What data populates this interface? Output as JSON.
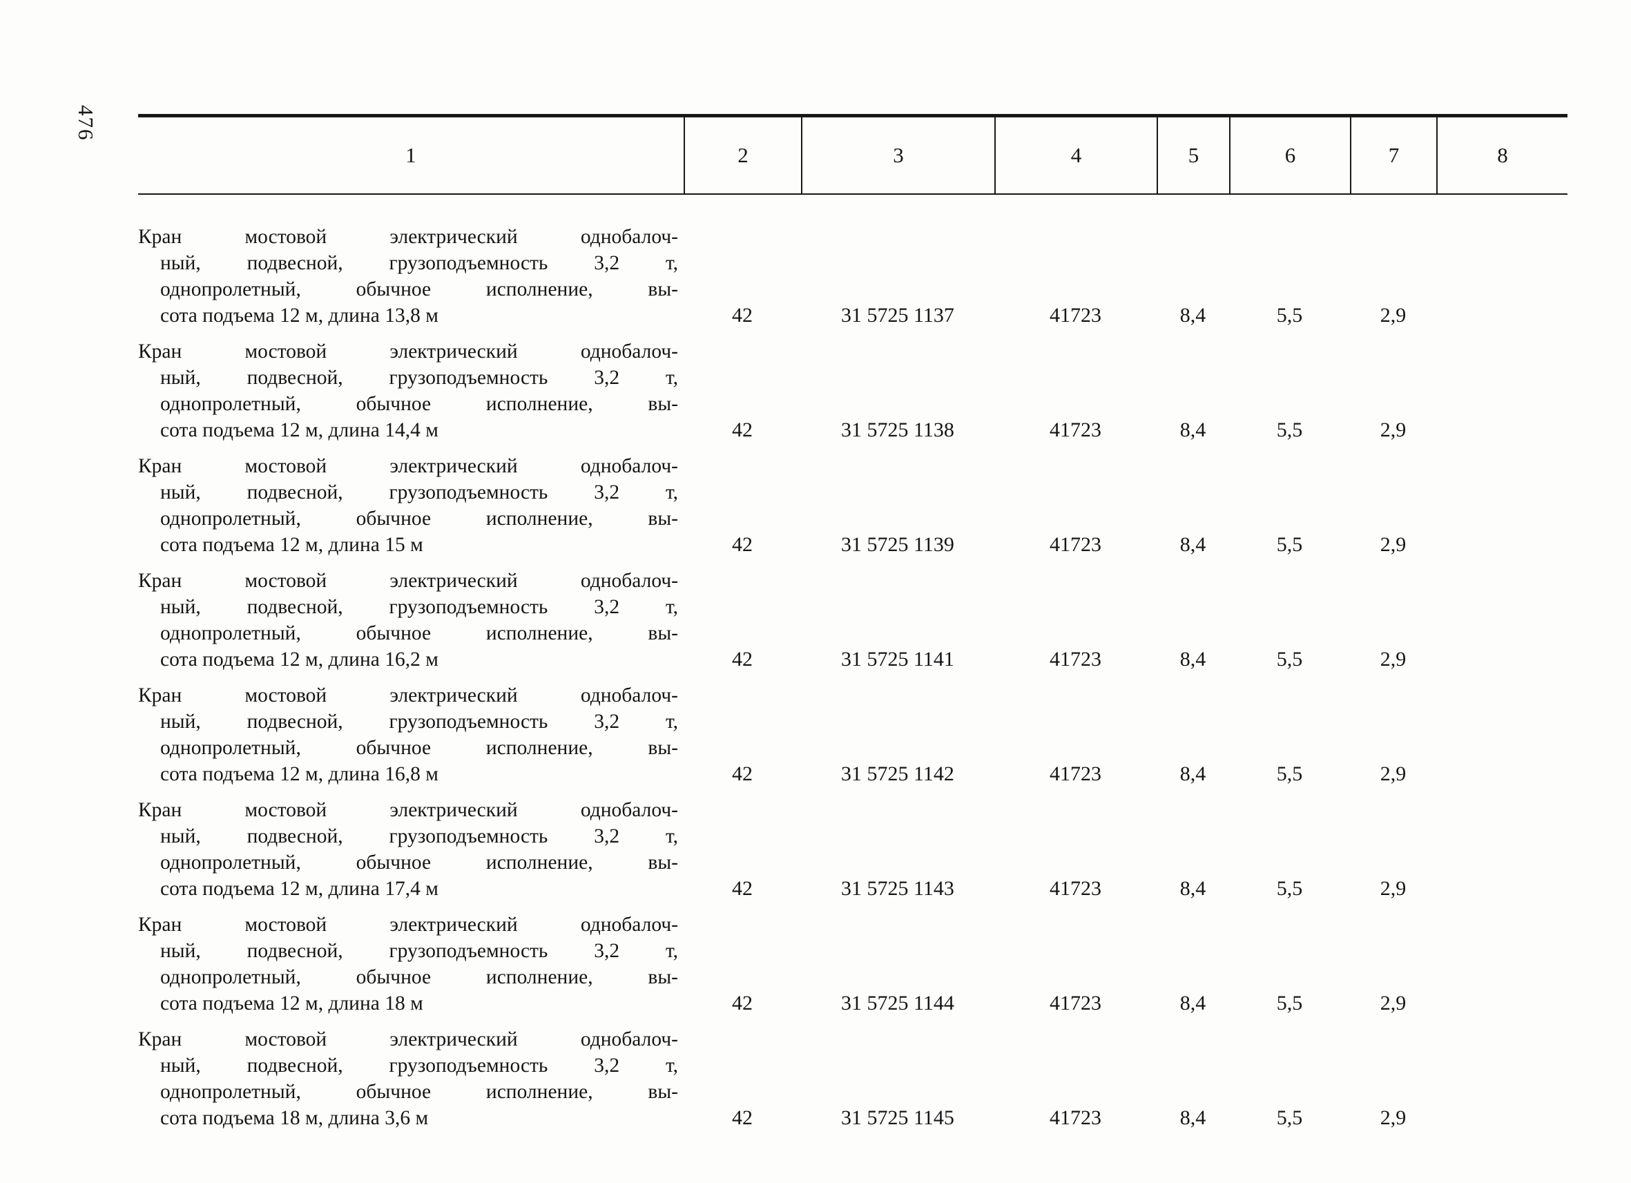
{
  "page": {
    "number": "476"
  },
  "colors": {
    "ink": "#161616",
    "paper": "#fdfdfb"
  },
  "table": {
    "header": [
      "1",
      "2",
      "3",
      "4",
      "5",
      "6",
      "7",
      "8"
    ],
    "rows": [
      {
        "description_lines": [
          "Кран мостовой электрический однобалоч-",
          "ный, подвесной, грузоподъемность 3,2 т,",
          "однопролетный, обычное исполнение, вы-",
          "сота подъема 12 м, длина 13,8 м"
        ],
        "values": [
          "42",
          "31 5725 1137",
          "41723",
          "8,4",
          "5,5",
          "2,9",
          ""
        ]
      },
      {
        "description_lines": [
          "Кран мостовой электрический однобалоч-",
          "ный, подвесной, грузоподъемность 3,2 т,",
          "однопролетный, обычное исполнение, вы-",
          "сота подъема 12 м, длина 14,4 м"
        ],
        "values": [
          "42",
          "31 5725 1138",
          "41723",
          "8,4",
          "5,5",
          "2,9",
          ""
        ]
      },
      {
        "description_lines": [
          "Кран мостовой электрический однобалоч-",
          "ный, подвесной, грузоподъемность 3,2 т,",
          "однопролетный, обычное исполнение, вы-",
          "сота подъема 12 м, длина 15 м"
        ],
        "values": [
          "42",
          "31 5725 1139",
          "41723",
          "8,4",
          "5,5",
          "2,9",
          ""
        ]
      },
      {
        "description_lines": [
          "Кран мостовой электрический однобалоч-",
          "ный, подвесной, грузоподъемность 3,2 т,",
          "однопролетный, обычное исполнение, вы-",
          "сота подъема 12 м, длина 16,2 м"
        ],
        "values": [
          "42",
          "31 5725 1141",
          "41723",
          "8,4",
          "5,5",
          "2,9",
          ""
        ]
      },
      {
        "description_lines": [
          "Кран мостовой электрический однобалоч-",
          "ный, подвесной, грузоподъемность 3,2 т,",
          "однопролетный, обычное исполнение, вы-",
          "сота подъема 12 м, длина 16,8 м"
        ],
        "values": [
          "42",
          "31 5725 1142",
          "41723",
          "8,4",
          "5,5",
          "2,9",
          ""
        ]
      },
      {
        "description_lines": [
          "Кран мостовой электрический однобалоч-",
          "ный, подвесной, грузоподъемность 3,2 т,",
          "однопролетный, обычное исполнение, вы-",
          "сота подъема 12 м, длина 17,4 м"
        ],
        "values": [
          "42",
          "31 5725 1143",
          "41723",
          "8,4",
          "5,5",
          "2,9",
          ""
        ]
      },
      {
        "description_lines": [
          "Кран мостовой электрический однобалоч-",
          "ный, подвесной, грузоподъемность 3,2 т,",
          "однопролетный, обычное исполнение, вы-",
          "сота подъема 12 м, длина 18 м"
        ],
        "values": [
          "42",
          "31 5725 1144",
          "41723",
          "8,4",
          "5,5",
          "2,9",
          ""
        ]
      },
      {
        "description_lines": [
          "Кран мостовой электрический однобалоч-",
          "ный, подвесной, грузоподъемность 3,2 т,",
          "однопролетный, обычное исполнение, вы-",
          "сота подъема 18 м, длина 3,6 м"
        ],
        "values": [
          "42",
          "31 5725 1145",
          "41723",
          "8,4",
          "5,5",
          "2,9",
          ""
        ]
      }
    ]
  }
}
